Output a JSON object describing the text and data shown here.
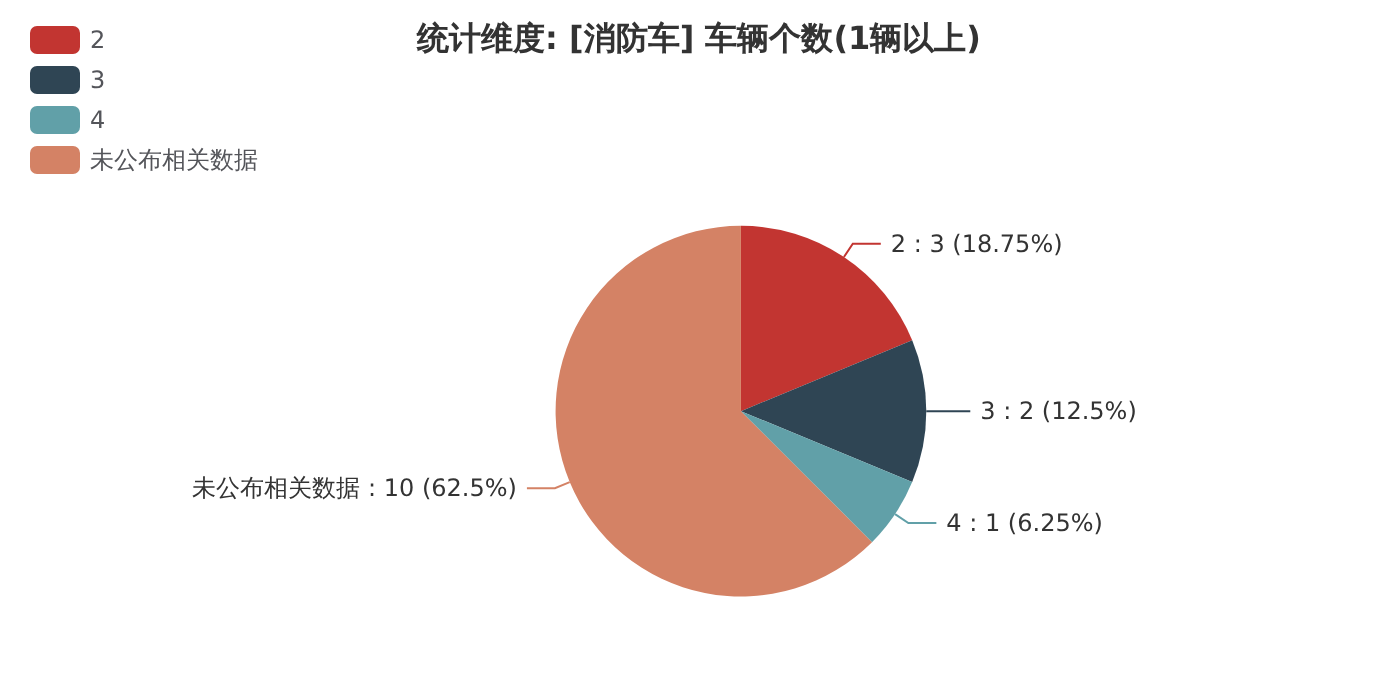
{
  "chart_data": {
    "type": "pie",
    "title": "统计维度: [消防车] 车辆个数(1辆以上)",
    "categories": [
      "2",
      "3",
      "4",
      "未公布相关数据"
    ],
    "values": [
      3,
      2,
      1,
      10
    ],
    "colors": [
      "#c23531",
      "#2f4554",
      "#61a0a8",
      "#d48265"
    ],
    "value_labels": [
      "2 : 3 (18.75%)",
      "3 : 2 (12.5%)",
      "4 : 1 (6.25%)",
      "未公布相关数据 : 10 (62.5%)"
    ],
    "legend": "top left"
  }
}
